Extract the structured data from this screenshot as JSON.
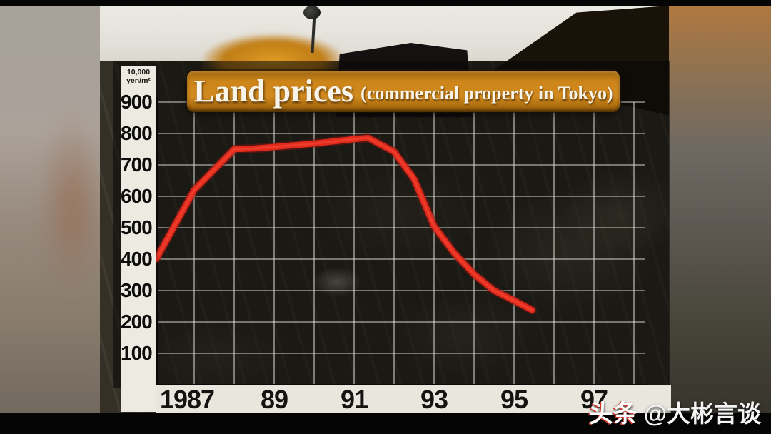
{
  "chart_data": {
    "type": "line",
    "title": "Land prices",
    "subtitle": "(commercial property in Tokyo)",
    "y_unit": [
      "10,000",
      "yen/m²"
    ],
    "y_tick_labels": [
      "900",
      "800",
      "700",
      "600",
      "500",
      "400",
      "300",
      "200",
      "100"
    ],
    "x_ticks": [
      {
        "label": "1987",
        "year": 1987
      },
      {
        "label": "89",
        "year": 1989
      },
      {
        "label": "91",
        "year": 1991
      },
      {
        "label": "93",
        "year": 1993
      },
      {
        "label": "95",
        "year": 1995
      },
      {
        "label": "97",
        "year": 1997
      }
    ],
    "xlim": [
      1986,
      1998.3
    ],
    "ylim": [
      0,
      900
    ],
    "grid": true,
    "legend": "none",
    "series": [
      {
        "name": "Tokyo commercial land price",
        "color": "#e02b1c",
        "points": [
          [
            1986.05,
            400
          ],
          [
            1987,
            620
          ],
          [
            1988,
            750
          ],
          [
            1988.5,
            752
          ],
          [
            1989,
            757
          ],
          [
            1990,
            768
          ],
          [
            1991,
            782
          ],
          [
            1991.35,
            786
          ],
          [
            1992,
            742
          ],
          [
            1992.5,
            655
          ],
          [
            1993,
            505
          ],
          [
            1993.5,
            420
          ],
          [
            1994,
            352
          ],
          [
            1994.5,
            300
          ],
          [
            1995,
            268
          ],
          [
            1995.45,
            238
          ]
        ]
      }
    ]
  },
  "watermark": {
    "brand": "头条",
    "account": "@大彬言谈"
  },
  "colors": {
    "line_red": "#e02b1c",
    "banner_orange": "#cd851a",
    "axis_strip": "#edeae2",
    "grid_line": "#dcdad2",
    "panel": "rgba(8,8,5,0.55)"
  }
}
